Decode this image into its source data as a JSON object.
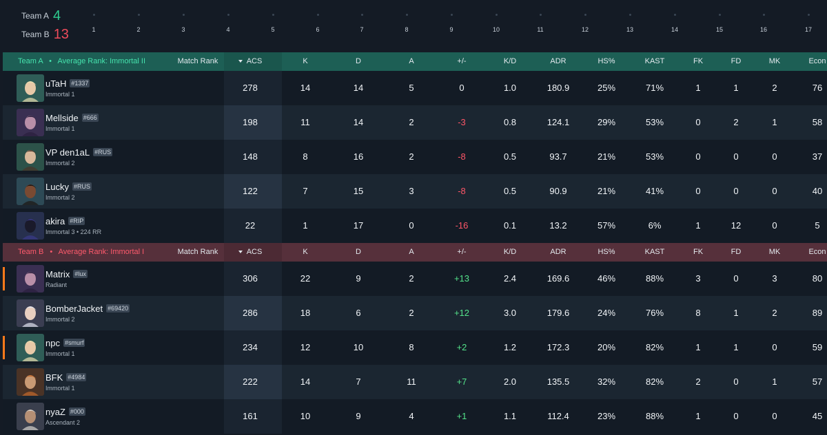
{
  "scoreboard": {
    "team_a": {
      "label": "Team A",
      "score": "4"
    },
    "team_b": {
      "label": "Team B",
      "score": "13"
    },
    "rounds": [
      "1",
      "2",
      "3",
      "4",
      "5",
      "6",
      "7",
      "8",
      "9",
      "10",
      "11",
      "12",
      "13",
      "14",
      "15",
      "16",
      "17"
    ]
  },
  "columns": {
    "match_rank": "Match Rank",
    "acs": "ACS",
    "k": "K",
    "d": "D",
    "a": "A",
    "pm": "+/-",
    "kd": "K/D",
    "adr": "ADR",
    "hs": "HS%",
    "kast": "KAST",
    "fk": "FK",
    "fd": "FD",
    "mk": "MK",
    "econ": "Econ"
  },
  "team_a_header": {
    "team": "Team A",
    "bullet": "•",
    "avg_rank": "Average Rank: Immortal II"
  },
  "team_b_header": {
    "team": "Team B",
    "bullet": "•",
    "avg_rank": "Average Rank: Immortal I"
  },
  "team_a_players": [
    {
      "name": "uTaH",
      "tag": "#1337",
      "rank": "Immortal 1",
      "acs": "278",
      "k": "14",
      "d": "14",
      "a": "5",
      "pm": "0",
      "kd": "1.0",
      "adr": "180.9",
      "hs": "25%",
      "kast": "71%",
      "fk": "1",
      "fd": "1",
      "mk": "2",
      "econ": "76",
      "pm_sign": "zero",
      "avatar": "agent-blonde-icon",
      "hl": false
    },
    {
      "name": "Mellside",
      "tag": "#666",
      "rank": "Immortal 1",
      "acs": "198",
      "k": "11",
      "d": "14",
      "a": "2",
      "pm": "-3",
      "kd": "0.8",
      "adr": "124.1",
      "hs": "29%",
      "kast": "53%",
      "fk": "0",
      "fd": "2",
      "mk": "1",
      "econ": "58",
      "pm_sign": "neg",
      "avatar": "agent-purple-icon",
      "hl": false
    },
    {
      "name": "VP den1aL",
      "tag": "#RUS",
      "rank": "Immortal 2",
      "acs": "148",
      "k": "8",
      "d": "16",
      "a": "2",
      "pm": "-8",
      "kd": "0.5",
      "adr": "93.7",
      "hs": "21%",
      "kast": "53%",
      "fk": "0",
      "fd": "0",
      "mk": "0",
      "econ": "37",
      "pm_sign": "neg",
      "avatar": "agent-glasses-icon",
      "hl": false
    },
    {
      "name": "Lucky",
      "tag": "#RUS",
      "rank": "Immortal 2",
      "acs": "122",
      "k": "7",
      "d": "15",
      "a": "3",
      "pm": "-8",
      "kd": "0.5",
      "adr": "90.9",
      "hs": "21%",
      "kast": "41%",
      "fk": "0",
      "fd": "0",
      "mk": "0",
      "econ": "40",
      "pm_sign": "neg",
      "avatar": "agent-dark-icon",
      "hl": false
    },
    {
      "name": "akira",
      "tag": "#RIP",
      "rank": "Immortal 3 • 224 RR",
      "acs": "22",
      "k": "1",
      "d": "17",
      "a": "0",
      "pm": "-16",
      "kd": "0.1",
      "adr": "13.2",
      "hs": "57%",
      "kast": "6%",
      "fk": "1",
      "fd": "12",
      "mk": "0",
      "econ": "5",
      "pm_sign": "neg",
      "avatar": "agent-hooded-icon",
      "hl": false
    }
  ],
  "team_b_players": [
    {
      "name": "Matrix",
      "tag": "#lux",
      "rank": "Radiant",
      "acs": "306",
      "k": "22",
      "d": "9",
      "a": "2",
      "pm": "+13",
      "kd": "2.4",
      "adr": "169.6",
      "hs": "46%",
      "kast": "88%",
      "fk": "3",
      "fd": "0",
      "mk": "3",
      "econ": "80",
      "pm_sign": "pos",
      "avatar": "agent-purple-icon",
      "hl": true
    },
    {
      "name": "BomberJacket",
      "tag": "#69420",
      "rank": "Immortal 2",
      "acs": "286",
      "k": "18",
      "d": "6",
      "a": "2",
      "pm": "+12",
      "kd": "3.0",
      "adr": "179.6",
      "hs": "24%",
      "kast": "76%",
      "fk": "8",
      "fd": "1",
      "mk": "2",
      "econ": "89",
      "pm_sign": "pos",
      "avatar": "agent-white-icon",
      "hl": false
    },
    {
      "name": "npc",
      "tag": "#smurf",
      "rank": "Immortal 1",
      "acs": "234",
      "k": "12",
      "d": "10",
      "a": "8",
      "pm": "+2",
      "kd": "1.2",
      "adr": "172.3",
      "hs": "20%",
      "kast": "82%",
      "fk": "1",
      "fd": "1",
      "mk": "0",
      "econ": "59",
      "pm_sign": "pos",
      "avatar": "agent-blonde-icon",
      "hl": true
    },
    {
      "name": "BFK",
      "tag": "#4984",
      "rank": "Immortal 1",
      "acs": "222",
      "k": "14",
      "d": "7",
      "a": "11",
      "pm": "+7",
      "kd": "2.0",
      "adr": "135.5",
      "hs": "32%",
      "kast": "82%",
      "fk": "2",
      "fd": "0",
      "mk": "1",
      "econ": "57",
      "pm_sign": "pos",
      "avatar": "agent-bearded-icon",
      "hl": false
    },
    {
      "name": "nyaZ",
      "tag": "#000",
      "rank": "Ascendant 2",
      "acs": "161",
      "k": "10",
      "d": "9",
      "a": "4",
      "pm": "+1",
      "kd": "1.1",
      "adr": "112.4",
      "hs": "23%",
      "kast": "88%",
      "fk": "1",
      "fd": "0",
      "mk": "0",
      "econ": "45",
      "pm_sign": "pos",
      "avatar": "agent-hat-icon",
      "hl": false
    }
  ],
  "colors": {
    "team_a": "#2ecc8f",
    "team_b": "#ef4b5b",
    "positive": "#54e38a",
    "negative": "#ff5668",
    "highlight": "#ff7a1a"
  }
}
